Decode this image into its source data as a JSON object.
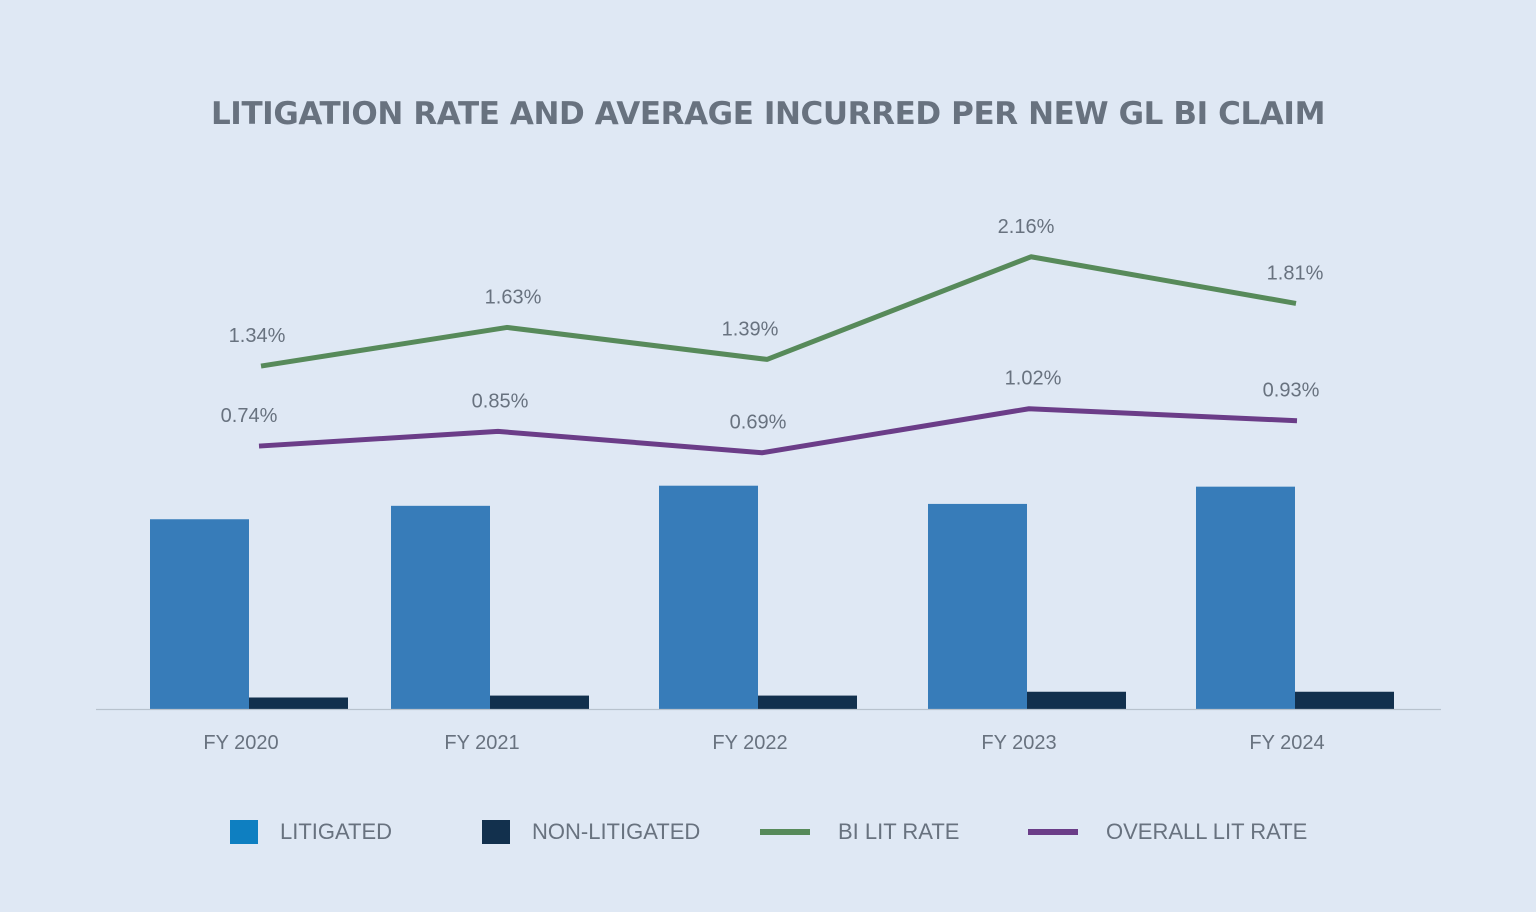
{
  "chart_data": {
    "type": "bar",
    "title": "LITIGATION RATE AND AVERAGE INCURRED PER NEW GL BI CLAIM",
    "categories": [
      "FY 2020",
      "FY 2021",
      "FY 2022",
      "FY 2023",
      "FY 2024"
    ],
    "bar_series": [
      {
        "name": "LITIGATED",
        "values": [
          198,
          212,
          233,
          214,
          232
        ],
        "color": "#377cb9"
      },
      {
        "name": "NON-LITIGATED",
        "values": [
          12,
          14,
          14,
          18,
          18
        ],
        "color": "#12304d"
      }
    ],
    "bar_ylim": [
      0,
      240
    ],
    "line_series": [
      {
        "name": "BI LIT RATE",
        "values": [
          1.34,
          1.63,
          1.39,
          2.16,
          1.81
        ],
        "labels": [
          "1.34%",
          "1.63%",
          "1.39%",
          "2.16%",
          "1.81%"
        ],
        "color": "#578a5a"
      },
      {
        "name": "OVERALL LIT RATE",
        "values": [
          0.74,
          0.85,
          0.69,
          1.02,
          0.93
        ],
        "labels": [
          "0.74%",
          "0.85%",
          "0.69%",
          "1.02%",
          "0.93%"
        ],
        "color": "#6b3d88"
      }
    ],
    "legend": {
      "position": "bottom",
      "items": [
        {
          "label": "LITIGATED",
          "kind": "box",
          "color": "#0e7fc1"
        },
        {
          "label": "NON-LITIGATED",
          "kind": "box",
          "color": "#12304d"
        },
        {
          "label": "BI LIT RATE",
          "kind": "line",
          "color": "#578a5a"
        },
        {
          "label": "OVERALL LIT RATE",
          "kind": "line",
          "color": "#6b3d88"
        }
      ]
    },
    "grid": false,
    "axis_color": "#b8c2cd",
    "text_color": "#68727f"
  }
}
